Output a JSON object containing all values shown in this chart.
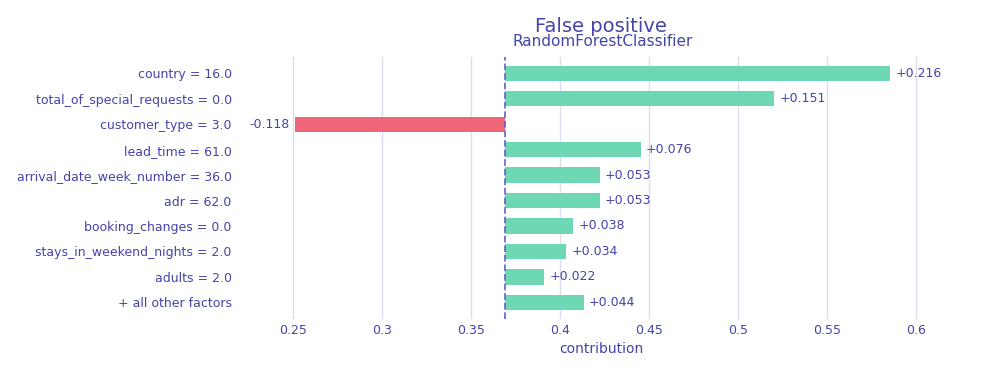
{
  "title": "False positive",
  "classifier_label": "RandomForestClassifier",
  "xlabel": "contribution",
  "baseline": 0.369,
  "categories": [
    "+ all other factors",
    "adults = 2.0",
    "stays_in_weekend_nights = 2.0",
    "booking_changes = 0.0",
    "adr = 62.0",
    "arrival_date_week_number = 36.0",
    "lead_time = 61.0",
    "customer_type = 3.0",
    "total_of_special_requests = 0.0",
    "country = 16.0"
  ],
  "values": [
    0.044,
    0.022,
    0.034,
    0.038,
    0.053,
    0.053,
    0.076,
    -0.118,
    0.151,
    0.216
  ],
  "labels": [
    "+0.044",
    "+0.022",
    "+0.034",
    "+0.038",
    "+0.053",
    "+0.053",
    "+0.076",
    "-0.118",
    "+0.151",
    "+0.216"
  ],
  "color_positive": "#6ed8b4",
  "color_negative": "#ee6677",
  "background_color": "#ffffff",
  "grid_color": "#ddddee",
  "text_color": "#4444aa",
  "dashed_color": "#5555bb",
  "xlim_left": 0.218,
  "xlim_right": 0.628,
  "bar_height": 0.6,
  "title_fontsize": 14,
  "label_fontsize": 9,
  "tick_fontsize": 9,
  "classifier_fontsize": 11,
  "value_label_fontsize": 9
}
